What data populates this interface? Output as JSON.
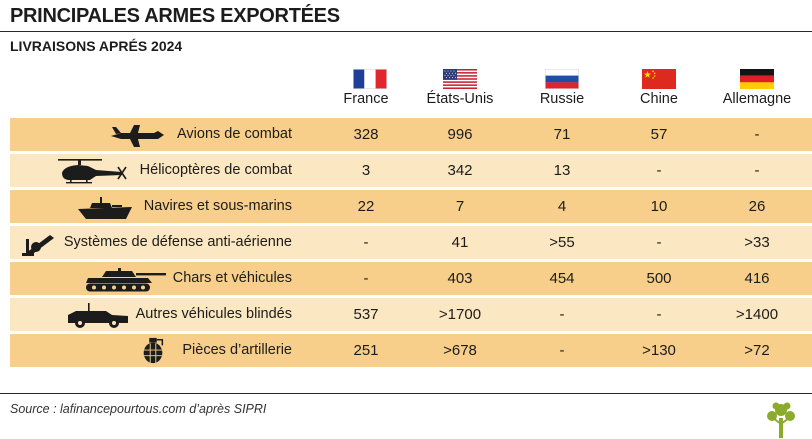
{
  "header": {
    "title": "PRINCIPALES ARMES EXPORTÉES",
    "subtitle": "LIVRAISONS APRÉS 2024"
  },
  "colors": {
    "row_dark": "#f7cf8a",
    "row_light": "#fbe7c2",
    "ink": "#1c1c1c",
    "logo_green": "#8dab2a"
  },
  "chart_data": {
    "type": "table",
    "title": "PRINCIPALES ARMES EXPORTÉES",
    "subtitle": "LIVRAISONS APRÉS 2024",
    "columns": [
      {
        "name": "France",
        "flag": "france-flag"
      },
      {
        "name": "États-Unis",
        "flag": "usa-flag"
      },
      {
        "name": "Russie",
        "flag": "russia-flag"
      },
      {
        "name": "Chine",
        "flag": "china-flag"
      },
      {
        "name": "Allemagne",
        "flag": "germany-flag"
      }
    ],
    "rows": [
      {
        "label": "Avions de combat",
        "icon": "fighter-jet-icon",
        "values": [
          "328",
          "996",
          "71",
          "57",
          "-"
        ]
      },
      {
        "label": "Hélicoptères de combat",
        "icon": "helicopter-icon",
        "values": [
          "3",
          "342",
          "13",
          "-",
          "-"
        ]
      },
      {
        "label": "Navires et sous-marins",
        "icon": "warship-icon",
        "values": [
          "22",
          "7",
          "4",
          "10",
          "26"
        ]
      },
      {
        "label": "Systèmes de défense anti-aérienne",
        "icon": "missile-launcher-icon",
        "values": [
          "-",
          "41",
          ">55",
          "-",
          ">33"
        ]
      },
      {
        "label": "Chars et véhicules",
        "icon": "tank-icon",
        "values": [
          "-",
          "403",
          "454",
          "500",
          "416"
        ]
      },
      {
        "label": "Autres véhicules blindés",
        "icon": "armored-vehicle-icon",
        "values": [
          "537",
          ">1700",
          "-",
          "-",
          ">1400"
        ]
      },
      {
        "label": "Pièces d’artillerie",
        "icon": "grenade-icon",
        "values": [
          "251",
          ">678",
          "-",
          ">130",
          ">72"
        ]
      }
    ]
  },
  "footer": {
    "source": "Source : lafinancepourtous.com d’après SIPRI",
    "logo_icon": "tree-logo-icon"
  }
}
